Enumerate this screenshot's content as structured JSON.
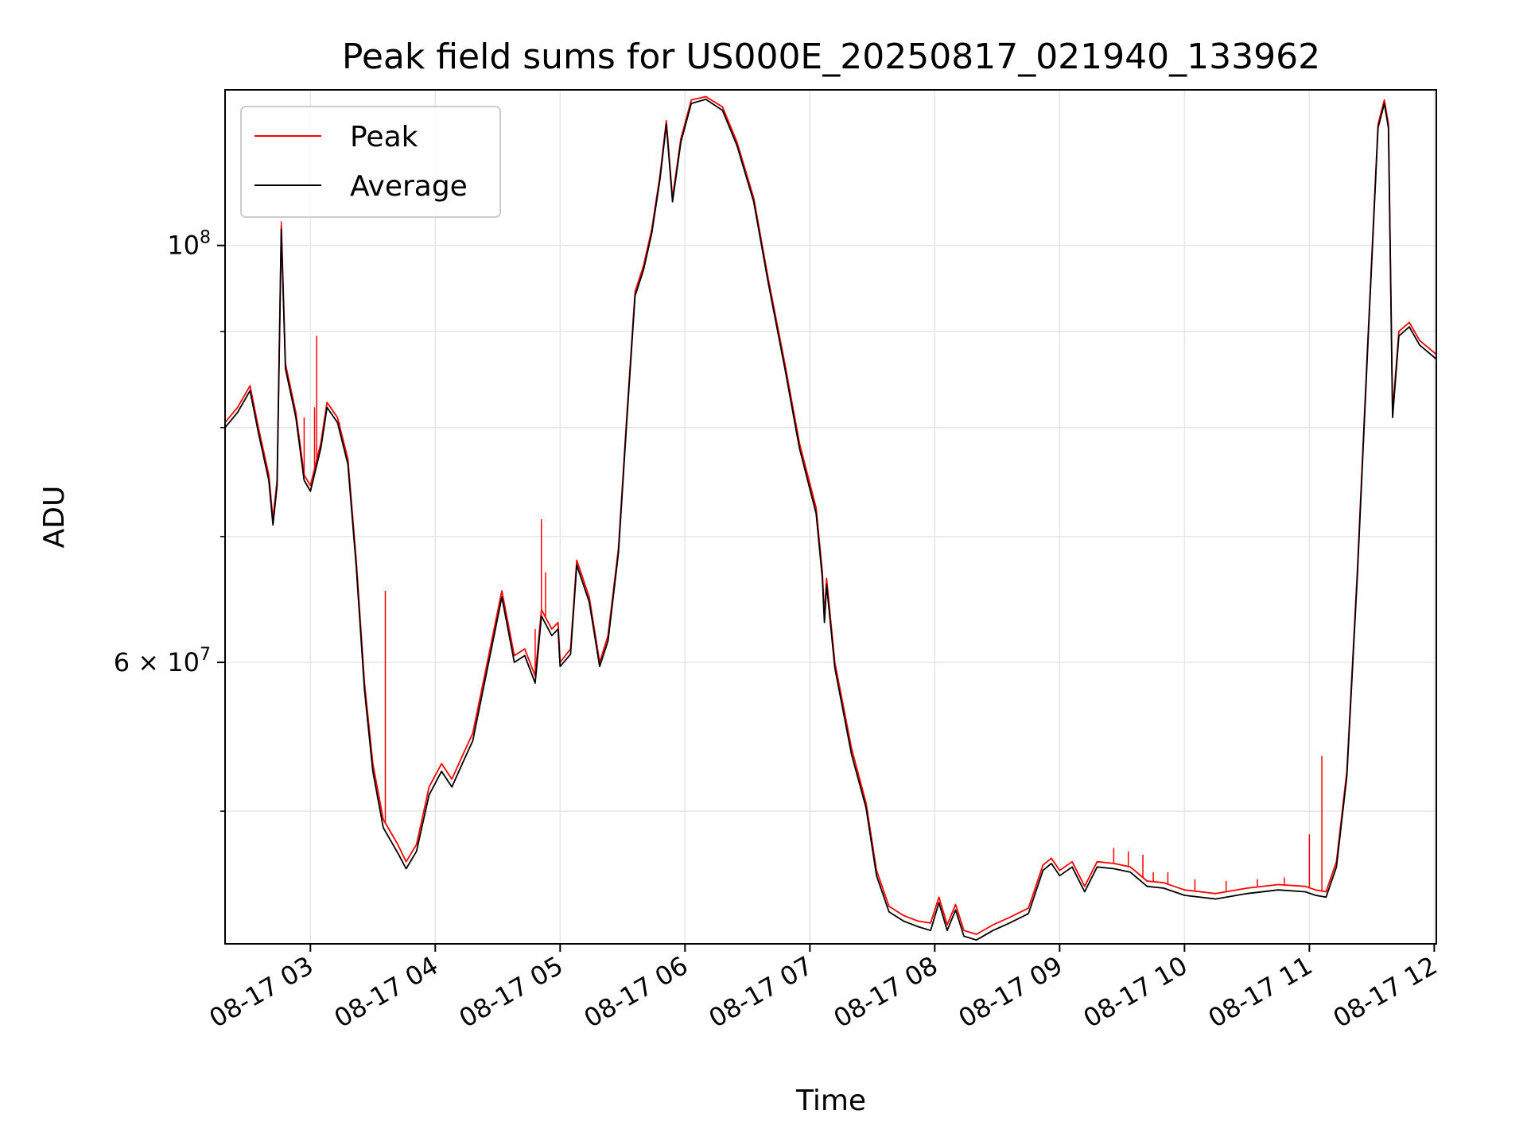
{
  "chart_data": {
    "type": "line",
    "title": "Peak field sums for US000E_20250817_021940_133962",
    "xlabel": "Time",
    "ylabel": "ADU",
    "y_scale": "log",
    "grid": true,
    "legend_position": "upper-left",
    "x_range": [
      "2025-08-17 02:19",
      "2025-08-17 12:01"
    ],
    "y_range": [
      42500000,
      121000000
    ],
    "x_ticks": [
      "08-17 03",
      "08-17 04",
      "08-17 05",
      "08-17 06",
      "08-17 07",
      "08-17 08",
      "08-17 09",
      "08-17 10",
      "08-17 11",
      "08-17 12"
    ],
    "y_major_ticks": [
      {
        "value": 60000000,
        "base": "6",
        "exp": "7"
      },
      {
        "value": 100000000,
        "base": "10",
        "exp": "8"
      }
    ],
    "y_minor_ticks": [
      50000000,
      70000000,
      80000000,
      90000000
    ],
    "series": [
      {
        "name": "Peak",
        "color": "#ff0000",
        "points": [
          [
            "2025-08-17 02:19",
            80500000
          ],
          [
            "2025-08-17 02:25",
            82000000
          ],
          [
            "2025-08-17 02:31",
            84200000
          ],
          [
            "2025-08-17 02:35",
            80000000
          ],
          [
            "2025-08-17 02:40",
            75500000
          ],
          [
            "2025-08-17 02:42",
            71500000
          ],
          [
            "2025-08-17 02:44",
            75000000
          ],
          [
            "2025-08-17 02:46",
            102500000
          ],
          [
            "2025-08-17 02:48",
            86500000
          ],
          [
            "2025-08-17 02:53",
            81500000
          ],
          [
            "2025-08-17 02:57",
            75500000
          ],
          [
            "2025-08-17 03:00",
            74500000
          ],
          [
            "2025-08-17 03:05",
            78500000
          ],
          [
            "2025-08-17 03:08",
            82500000
          ],
          [
            "2025-08-17 03:13",
            81000000
          ],
          [
            "2025-08-17 03:18",
            77000000
          ],
          [
            "2025-08-17 03:22",
            68000000
          ],
          [
            "2025-08-17 03:26",
            58500000
          ],
          [
            "2025-08-17 03:30",
            53000000
          ],
          [
            "2025-08-17 03:35",
            49500000
          ],
          [
            "2025-08-17 03:42",
            48000000
          ],
          [
            "2025-08-17 03:46",
            47000000
          ],
          [
            "2025-08-17 03:51",
            48000000
          ],
          [
            "2025-08-17 03:57",
            51500000
          ],
          [
            "2025-08-17 04:03",
            53000000
          ],
          [
            "2025-08-17 04:08",
            52000000
          ],
          [
            "2025-08-17 04:13",
            53500000
          ],
          [
            "2025-08-17 04:18",
            55000000
          ],
          [
            "2025-08-17 04:25",
            60000000
          ],
          [
            "2025-08-17 04:32",
            65500000
          ],
          [
            "2025-08-17 04:38",
            60500000
          ],
          [
            "2025-08-17 04:43",
            61000000
          ],
          [
            "2025-08-17 04:48",
            59000000
          ],
          [
            "2025-08-17 04:51",
            64000000
          ],
          [
            "2025-08-17 04:56",
            62500000
          ],
          [
            "2025-08-17 04:59",
            63000000
          ],
          [
            "2025-08-17 05:00",
            60000000
          ],
          [
            "2025-08-17 05:05",
            61000000
          ],
          [
            "2025-08-17 05:08",
            68000000
          ],
          [
            "2025-08-17 05:14",
            65000000
          ],
          [
            "2025-08-17 05:19",
            60000000
          ],
          [
            "2025-08-17 05:23",
            62000000
          ],
          [
            "2025-08-17 05:28",
            69000000
          ],
          [
            "2025-08-17 05:32",
            81000000
          ],
          [
            "2025-08-17 05:36",
            94500000
          ],
          [
            "2025-08-17 05:40",
            97500000
          ],
          [
            "2025-08-17 05:44",
            102000000
          ],
          [
            "2025-08-17 05:48",
            109000000
          ],
          [
            "2025-08-17 05:51",
            116500000
          ],
          [
            "2025-08-17 05:54",
            106000000
          ],
          [
            "2025-08-17 05:58",
            114000000
          ],
          [
            "2025-08-17 06:03",
            119500000
          ],
          [
            "2025-08-17 06:10",
            120000000
          ],
          [
            "2025-08-17 06:18",
            118500000
          ],
          [
            "2025-08-17 06:25",
            113500000
          ],
          [
            "2025-08-17 06:33",
            106000000
          ],
          [
            "2025-08-17 06:40",
            96000000
          ],
          [
            "2025-08-17 06:48",
            86500000
          ],
          [
            "2025-08-17 06:55",
            78500000
          ],
          [
            "2025-08-17 07:03",
            72500000
          ],
          [
            "2025-08-17 07:06",
            67000000
          ],
          [
            "2025-08-17 07:07",
            63500000
          ],
          [
            "2025-08-17 07:08",
            66500000
          ],
          [
            "2025-08-17 07:12",
            60000000
          ],
          [
            "2025-08-17 07:20",
            54000000
          ],
          [
            "2025-08-17 07:27",
            50500000
          ],
          [
            "2025-08-17 07:32",
            46500000
          ],
          [
            "2025-08-17 07:38",
            44500000
          ],
          [
            "2025-08-17 07:45",
            44000000
          ],
          [
            "2025-08-17 07:52",
            43700000
          ],
          [
            "2025-08-17 07:58",
            43600000
          ],
          [
            "2025-08-17 08:02",
            45000000
          ],
          [
            "2025-08-17 08:06",
            43500000
          ],
          [
            "2025-08-17 08:10",
            44600000
          ],
          [
            "2025-08-17 08:14",
            43200000
          ],
          [
            "2025-08-17 08:20",
            43000000
          ],
          [
            "2025-08-17 08:28",
            43500000
          ],
          [
            "2025-08-17 08:36",
            43900000
          ],
          [
            "2025-08-17 08:45",
            44400000
          ],
          [
            "2025-08-17 08:52",
            46800000
          ],
          [
            "2025-08-17 08:56",
            47200000
          ],
          [
            "2025-08-17 09:00",
            46500000
          ],
          [
            "2025-08-17 09:06",
            47000000
          ],
          [
            "2025-08-17 09:12",
            45600000
          ],
          [
            "2025-08-17 09:18",
            47000000
          ],
          [
            "2025-08-17 09:26",
            46900000
          ],
          [
            "2025-08-17 09:34",
            46700000
          ],
          [
            "2025-08-17 09:42",
            45900000
          ],
          [
            "2025-08-17 09:50",
            45800000
          ],
          [
            "2025-08-17 10:00",
            45400000
          ],
          [
            "2025-08-17 10:15",
            45200000
          ],
          [
            "2025-08-17 10:30",
            45500000
          ],
          [
            "2025-08-17 10:45",
            45700000
          ],
          [
            "2025-08-17 10:58",
            45600000
          ],
          [
            "2025-08-17 11:03",
            45400000
          ],
          [
            "2025-08-17 11:08",
            45300000
          ],
          [
            "2025-08-17 11:13",
            47000000
          ],
          [
            "2025-08-17 11:18",
            52500000
          ],
          [
            "2025-08-17 11:23",
            67000000
          ],
          [
            "2025-08-17 11:28",
            88500000
          ],
          [
            "2025-08-17 11:33",
            116000000
          ],
          [
            "2025-08-17 11:36",
            119500000
          ],
          [
            "2025-08-17 11:38",
            116000000
          ],
          [
            "2025-08-17 11:40",
            81500000
          ],
          [
            "2025-08-17 11:43",
            90000000
          ],
          [
            "2025-08-17 11:48",
            91000000
          ],
          [
            "2025-08-17 11:53",
            89000000
          ],
          [
            "2025-08-17 12:01",
            87500000
          ]
        ],
        "spikes": [
          [
            "2025-08-17 02:46",
            103000000
          ],
          [
            "2025-08-17 02:57",
            81000000
          ],
          [
            "2025-08-17 03:02",
            82000000
          ],
          [
            "2025-08-17 03:03",
            89500000
          ],
          [
            "2025-08-17 03:14",
            80500000
          ],
          [
            "2025-08-17 03:36",
            65500000
          ],
          [
            "2025-08-17 04:48",
            62500000
          ],
          [
            "2025-08-17 04:51",
            71500000
          ],
          [
            "2025-08-17 04:53",
            67000000
          ],
          [
            "2025-08-17 09:26",
            47800000
          ],
          [
            "2025-08-17 09:33",
            47600000
          ],
          [
            "2025-08-17 09:40",
            47400000
          ],
          [
            "2025-08-17 09:45",
            46400000
          ],
          [
            "2025-08-17 09:52",
            46400000
          ],
          [
            "2025-08-17 10:05",
            46000000
          ],
          [
            "2025-08-17 10:20",
            45900000
          ],
          [
            "2025-08-17 10:35",
            46000000
          ],
          [
            "2025-08-17 10:48",
            46100000
          ],
          [
            "2025-08-17 11:00",
            48600000
          ],
          [
            "2025-08-17 11:06",
            53500000
          ]
        ]
      },
      {
        "name": "Average",
        "color": "#000000",
        "points": [
          [
            "2025-08-17 02:19",
            80000000
          ],
          [
            "2025-08-17 02:25",
            81500000
          ],
          [
            "2025-08-17 02:31",
            83700000
          ],
          [
            "2025-08-17 02:35",
            79500000
          ],
          [
            "2025-08-17 02:40",
            75000000
          ],
          [
            "2025-08-17 02:42",
            71000000
          ],
          [
            "2025-08-17 02:44",
            74500000
          ],
          [
            "2025-08-17 02:46",
            102000000
          ],
          [
            "2025-08-17 02:48",
            86000000
          ],
          [
            "2025-08-17 02:53",
            81000000
          ],
          [
            "2025-08-17 02:57",
            75000000
          ],
          [
            "2025-08-17 03:00",
            74000000
          ],
          [
            "2025-08-17 03:05",
            78000000
          ],
          [
            "2025-08-17 03:08",
            82000000
          ],
          [
            "2025-08-17 03:13",
            80500000
          ],
          [
            "2025-08-17 03:18",
            76500000
          ],
          [
            "2025-08-17 03:22",
            67500000
          ],
          [
            "2025-08-17 03:26",
            58000000
          ],
          [
            "2025-08-17 03:30",
            52500000
          ],
          [
            "2025-08-17 03:35",
            49000000
          ],
          [
            "2025-08-17 03:42",
            47500000
          ],
          [
            "2025-08-17 03:46",
            46600000
          ],
          [
            "2025-08-17 03:51",
            47600000
          ],
          [
            "2025-08-17 03:57",
            51000000
          ],
          [
            "2025-08-17 04:03",
            52500000
          ],
          [
            "2025-08-17 04:08",
            51500000
          ],
          [
            "2025-08-17 04:13",
            53000000
          ],
          [
            "2025-08-17 04:18",
            54500000
          ],
          [
            "2025-08-17 04:25",
            59500000
          ],
          [
            "2025-08-17 04:32",
            65000000
          ],
          [
            "2025-08-17 04:38",
            60000000
          ],
          [
            "2025-08-17 04:43",
            60500000
          ],
          [
            "2025-08-17 04:48",
            58500000
          ],
          [
            "2025-08-17 04:51",
            63500000
          ],
          [
            "2025-08-17 04:56",
            62000000
          ],
          [
            "2025-08-17 04:59",
            62500000
          ],
          [
            "2025-08-17 05:00",
            59700000
          ],
          [
            "2025-08-17 05:05",
            60600000
          ],
          [
            "2025-08-17 05:08",
            67600000
          ],
          [
            "2025-08-17 05:14",
            64600000
          ],
          [
            "2025-08-17 05:19",
            59700000
          ],
          [
            "2025-08-17 05:23",
            61600000
          ],
          [
            "2025-08-17 05:28",
            68600000
          ],
          [
            "2025-08-17 05:32",
            80500000
          ],
          [
            "2025-08-17 05:36",
            94000000
          ],
          [
            "2025-08-17 05:40",
            97000000
          ],
          [
            "2025-08-17 05:44",
            101500000
          ],
          [
            "2025-08-17 05:48",
            108500000
          ],
          [
            "2025-08-17 05:51",
            116000000
          ],
          [
            "2025-08-17 05:54",
            105500000
          ],
          [
            "2025-08-17 05:58",
            113500000
          ],
          [
            "2025-08-17 06:03",
            119000000
          ],
          [
            "2025-08-17 06:10",
            119600000
          ],
          [
            "2025-08-17 06:18",
            118000000
          ],
          [
            "2025-08-17 06:25",
            113000000
          ],
          [
            "2025-08-17 06:33",
            105500000
          ],
          [
            "2025-08-17 06:40",
            95500000
          ],
          [
            "2025-08-17 06:48",
            86000000
          ],
          [
            "2025-08-17 06:55",
            78000000
          ],
          [
            "2025-08-17 07:03",
            72000000
          ],
          [
            "2025-08-17 07:06",
            66500000
          ],
          [
            "2025-08-17 07:07",
            63000000
          ],
          [
            "2025-08-17 07:08",
            66000000
          ],
          [
            "2025-08-17 07:12",
            59600000
          ],
          [
            "2025-08-17 07:20",
            53600000
          ],
          [
            "2025-08-17 07:27",
            50200000
          ],
          [
            "2025-08-17 07:32",
            46200000
          ],
          [
            "2025-08-17 07:38",
            44200000
          ],
          [
            "2025-08-17 07:45",
            43700000
          ],
          [
            "2025-08-17 07:52",
            43400000
          ],
          [
            "2025-08-17 07:58",
            43200000
          ],
          [
            "2025-08-17 08:02",
            44700000
          ],
          [
            "2025-08-17 08:06",
            43200000
          ],
          [
            "2025-08-17 08:10",
            44300000
          ],
          [
            "2025-08-17 08:14",
            42900000
          ],
          [
            "2025-08-17 08:20",
            42700000
          ],
          [
            "2025-08-17 08:28",
            43200000
          ],
          [
            "2025-08-17 08:36",
            43600000
          ],
          [
            "2025-08-17 08:45",
            44100000
          ],
          [
            "2025-08-17 08:52",
            46500000
          ],
          [
            "2025-08-17 08:56",
            46900000
          ],
          [
            "2025-08-17 09:00",
            46200000
          ],
          [
            "2025-08-17 09:06",
            46700000
          ],
          [
            "2025-08-17 09:12",
            45300000
          ],
          [
            "2025-08-17 09:18",
            46700000
          ],
          [
            "2025-08-17 09:26",
            46600000
          ],
          [
            "2025-08-17 09:34",
            46400000
          ],
          [
            "2025-08-17 09:42",
            45600000
          ],
          [
            "2025-08-17 09:50",
            45500000
          ],
          [
            "2025-08-17 10:00",
            45100000
          ],
          [
            "2025-08-17 10:15",
            44900000
          ],
          [
            "2025-08-17 10:30",
            45200000
          ],
          [
            "2025-08-17 10:45",
            45400000
          ],
          [
            "2025-08-17 10:58",
            45300000
          ],
          [
            "2025-08-17 11:03",
            45100000
          ],
          [
            "2025-08-17 11:08",
            45000000
          ],
          [
            "2025-08-17 11:13",
            46700000
          ],
          [
            "2025-08-17 11:18",
            52200000
          ],
          [
            "2025-08-17 11:23",
            66600000
          ],
          [
            "2025-08-17 11:28",
            88000000
          ],
          [
            "2025-08-17 11:33",
            115500000
          ],
          [
            "2025-08-17 11:36",
            119000000
          ],
          [
            "2025-08-17 11:38",
            115500000
          ],
          [
            "2025-08-17 11:40",
            81000000
          ],
          [
            "2025-08-17 11:43",
            89500000
          ],
          [
            "2025-08-17 11:48",
            90500000
          ],
          [
            "2025-08-17 11:53",
            88500000
          ],
          [
            "2025-08-17 12:01",
            87000000
          ]
        ]
      }
    ]
  }
}
